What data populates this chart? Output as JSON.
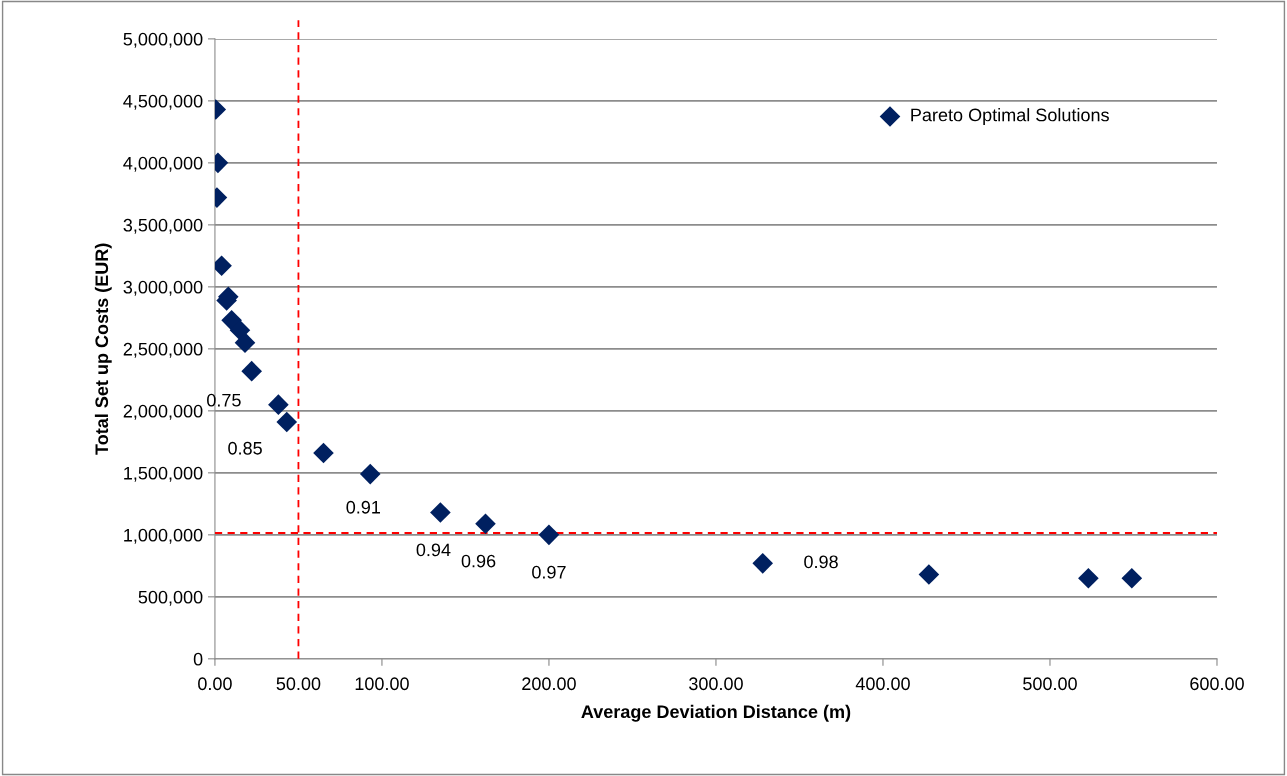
{
  "chart_data": {
    "type": "scatter",
    "xlabel": "Average Deviation Distance (m)",
    "ylabel": "Total Set up Costs (EUR)",
    "x": [
      0.5,
      1.8,
      1.2,
      4,
      8,
      7,
      10,
      15,
      18,
      22,
      38,
      43,
      65,
      93,
      135,
      162,
      200,
      328,
      427.5,
      523,
      549
    ],
    "series": [
      {
        "name": "Pareto Optimal Solutions",
        "color": "#002060",
        "values": [
          4430000,
          4000000,
          3720000,
          3170000,
          2920000,
          2890000,
          2730000,
          2650000,
          2550000,
          2320000,
          2050000,
          1910000,
          1660000,
          1490000,
          1180000,
          1090000,
          1000000,
          770000,
          680000,
          650000,
          650000
        ]
      }
    ],
    "marker": "diamond",
    "legend": "top right",
    "grid": "y",
    "xlim": [
      0,
      600
    ],
    "ylim": [
      0,
      5000000
    ],
    "xticks": [
      {
        "value": 0,
        "label": "0.00"
      },
      {
        "value": 100,
        "label": "100.00"
      },
      {
        "value": 200,
        "label": "200.00"
      },
      {
        "value": 300,
        "label": "300.00"
      },
      {
        "value": 400,
        "label": "400.00"
      },
      {
        "value": 500,
        "label": "500.00"
      },
      {
        "value": 600,
        "label": "600.00"
      }
    ],
    "yticks": [
      {
        "value": 0,
        "label": "0"
      },
      {
        "value": 500000,
        "label": "500,000"
      },
      {
        "value": 1000000,
        "label": "1,000,000"
      },
      {
        "value": 1500000,
        "label": "1,500,000"
      },
      {
        "value": 2000000,
        "label": "2,000,000"
      },
      {
        "value": 2500000,
        "label": "2,500,000"
      },
      {
        "value": 3000000,
        "label": "3,000,000"
      },
      {
        "value": 3500000,
        "label": "3,500,000"
      },
      {
        "value": 4000000,
        "label": "4,000,000"
      },
      {
        "value": 4500000,
        "label": "4,500,000"
      },
      {
        "value": 5000000,
        "label": "5,000,000"
      }
    ],
    "ref_lines": [
      {
        "axis": "x",
        "value": 50,
        "label": "50.00",
        "color": "#ff0000",
        "line_style": "dashed"
      },
      {
        "axis": "y",
        "value": 1015000,
        "color": "#ff0000",
        "line_style": "dashed"
      }
    ],
    "annotations": [
      {
        "text": "0.75",
        "x": 22,
        "y": 2320000
      },
      {
        "text": "0.85",
        "x": 43,
        "y": 1910000
      },
      {
        "text": "0.91",
        "x": 93,
        "y": 1490000
      },
      {
        "text": "0.94",
        "x": 135,
        "y": 1180000
      },
      {
        "text": "0.96",
        "x": 162,
        "y": 1090000
      },
      {
        "text": "0.97",
        "x": 200,
        "y": 1000000
      },
      {
        "text": "0.98",
        "x": 328,
        "y": 770000
      }
    ]
  }
}
